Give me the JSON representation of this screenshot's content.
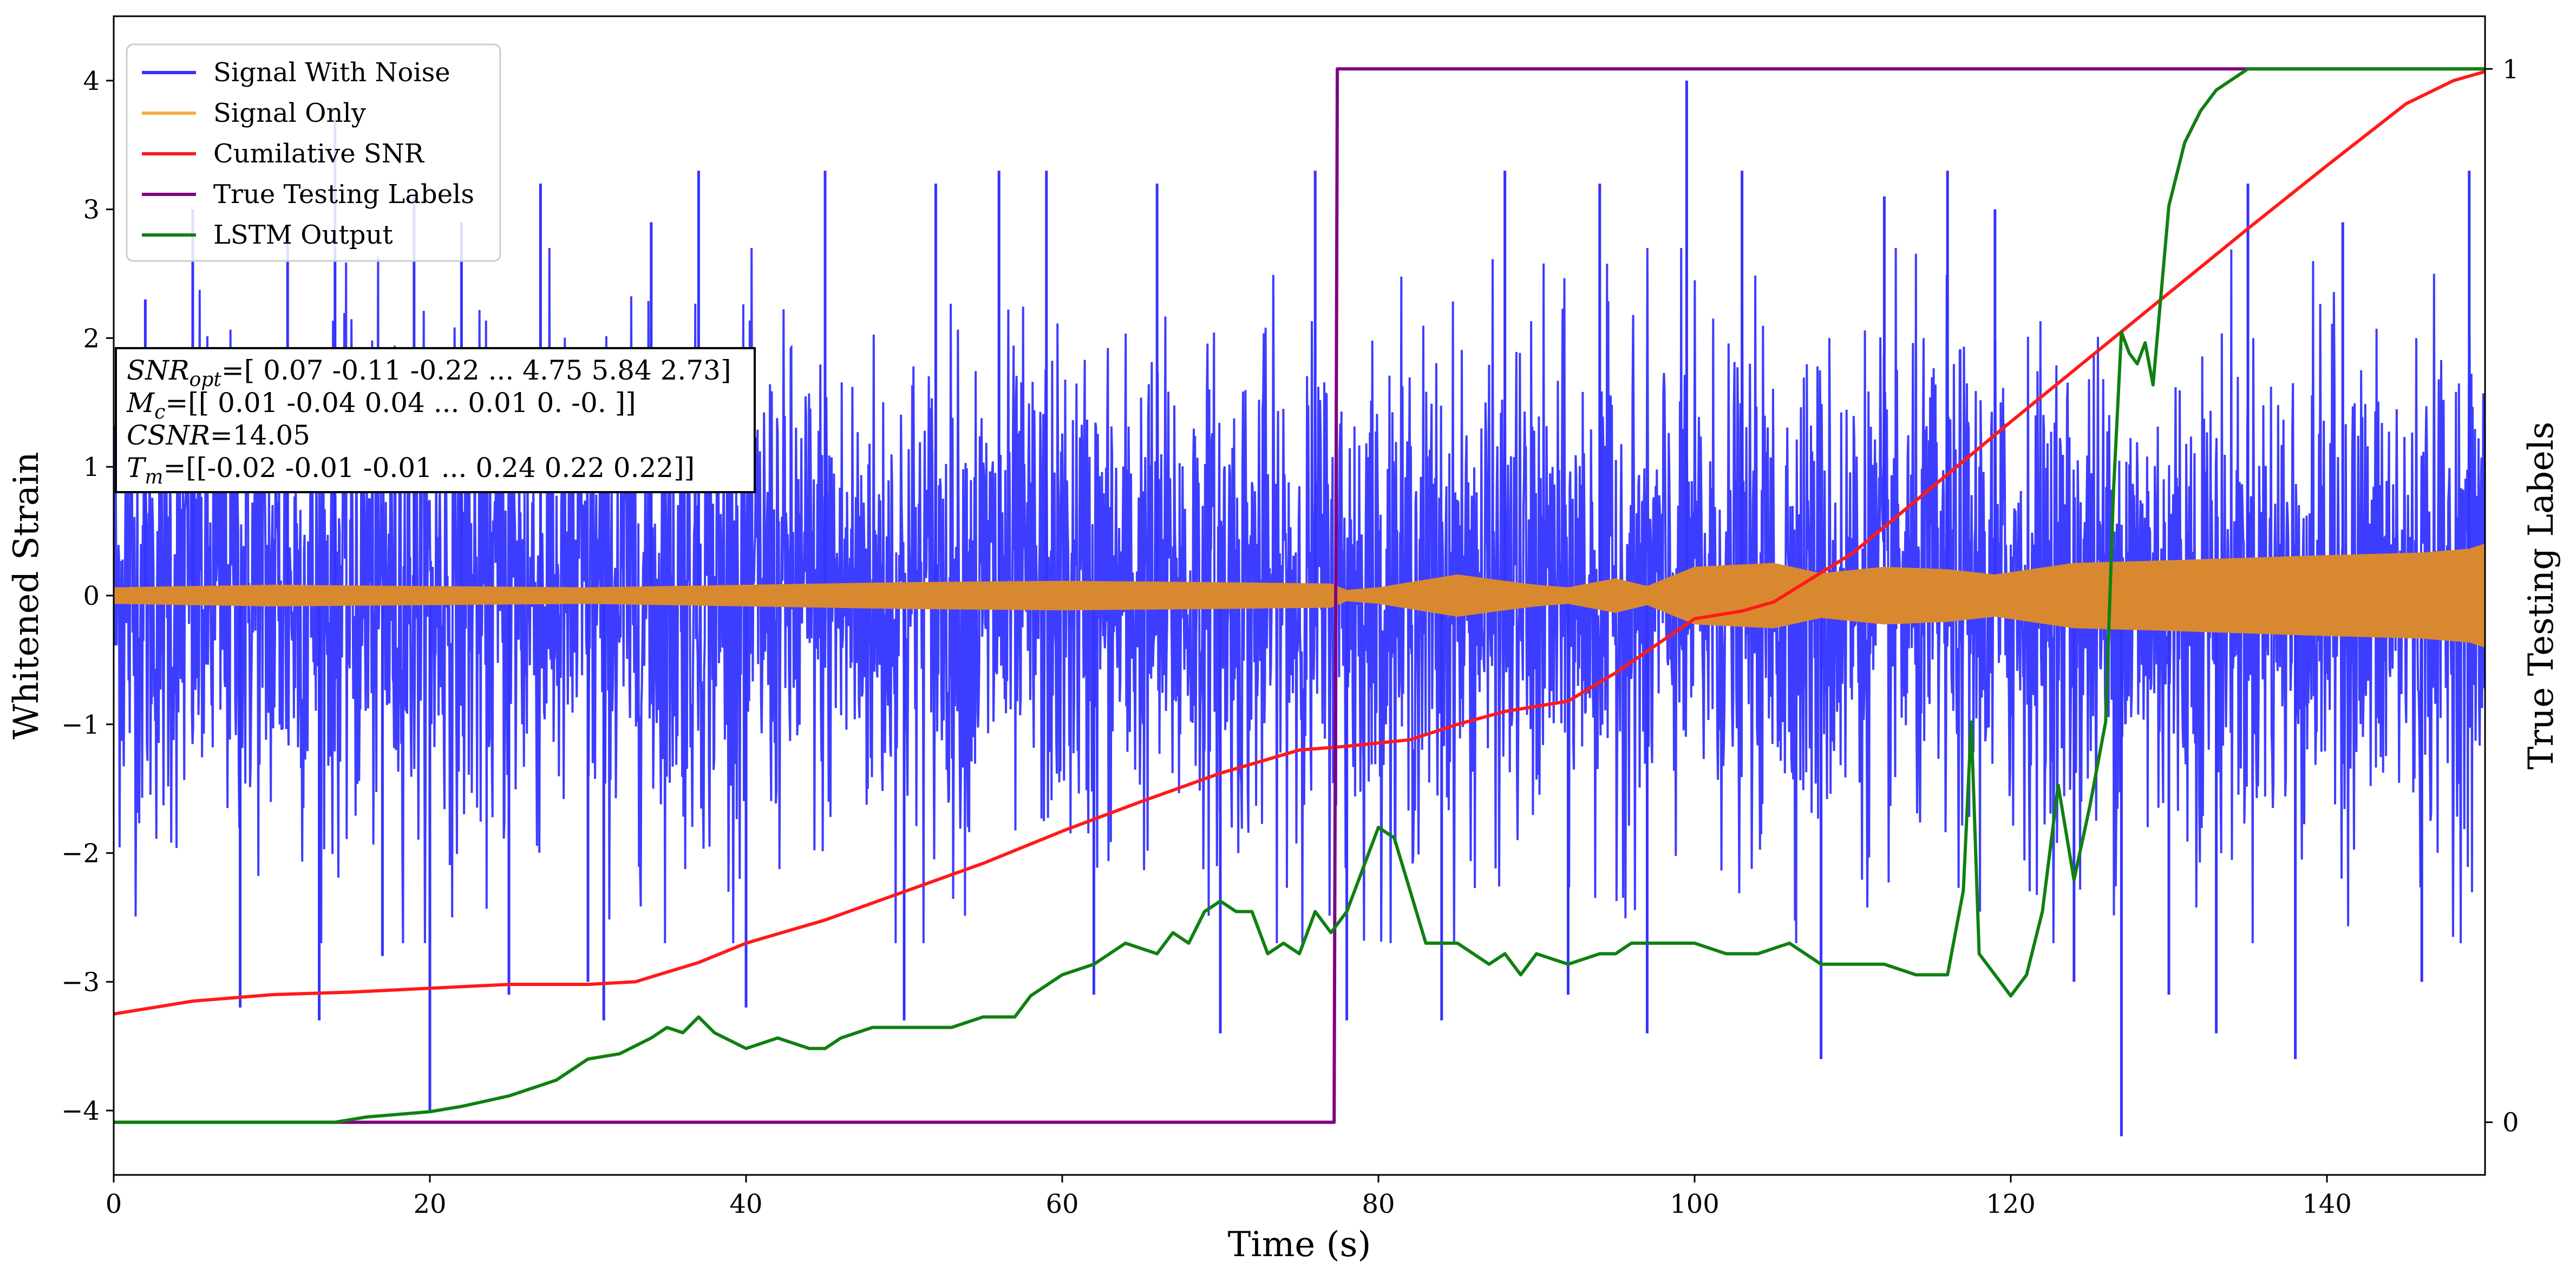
{
  "chart_data": {
    "type": "line",
    "title": "",
    "xlabel": "Time (s)",
    "ylabel": "Whitened Strain",
    "ylabel_right": "True Testing Labels",
    "xlim": [
      0,
      150
    ],
    "ylim": [
      -4.5,
      4.5
    ],
    "ylim_right": [
      -0.05,
      1.05
    ],
    "x_ticks": [
      0,
      20,
      40,
      60,
      80,
      100,
      120,
      140
    ],
    "y_ticks": [
      -4,
      -3,
      -2,
      -1,
      0,
      1,
      2,
      3,
      4
    ],
    "y_ticks_right": [
      0,
      1
    ],
    "legend": {
      "placement": "top-left",
      "entries": [
        {
          "label": "Signal With Noise",
          "color": "#3333ff"
        },
        {
          "label": "Signal Only",
          "color": "#f5b041"
        },
        {
          "label": "Cumilative SNR",
          "color": "#ff1a1a"
        },
        {
          "label": "True Testing Labels",
          "color": "#800080"
        },
        {
          "label": "LSTM Output",
          "color": "#108010"
        }
      ]
    },
    "annotation": {
      "lines": [
        {
          "name": "SNR",
          "sub": "opt",
          "value": "=[ 0.07 -0.11 -0.22 ...  4.75  5.84  2.73]"
        },
        {
          "name": "M",
          "sub": "c",
          "value": "=[[ 0.01 -0.04  0.04 ...  0.01  0.   -0.  ]]"
        },
        {
          "name": "CSNR",
          "sub": "",
          "value": "=14.05"
        },
        {
          "name": "T",
          "sub": "m",
          "value": "=[[-0.02 -0.01 -0.01 ...  0.24  0.22  0.22]]"
        }
      ]
    },
    "series": [
      {
        "name": "Signal With Noise",
        "axis": "left",
        "color": "#3333ff",
        "noise_band_sigma": 0.95,
        "typical_range": [
          -2.5,
          2.5
        ],
        "spikes": [
          [
            2,
            2.3
          ],
          [
            5,
            3.0
          ],
          [
            8,
            -3.2
          ],
          [
            11,
            2.8
          ],
          [
            13,
            -3.3
          ],
          [
            14,
            3.7
          ],
          [
            17,
            -2.8
          ],
          [
            19,
            3.1
          ],
          [
            20,
            -4.0
          ],
          [
            22,
            2.9
          ],
          [
            25,
            -3.1
          ],
          [
            27,
            3.2
          ],
          [
            30,
            -3.0
          ],
          [
            31,
            -3.3
          ],
          [
            34,
            2.9
          ],
          [
            37,
            3.3
          ],
          [
            40,
            -3.2
          ],
          [
            45,
            3.3
          ],
          [
            50,
            -3.3
          ],
          [
            52,
            3.2
          ],
          [
            56,
            3.3
          ],
          [
            59,
            3.3
          ],
          [
            62,
            -3.1
          ],
          [
            66,
            3.2
          ],
          [
            70,
            -3.4
          ],
          [
            76,
            3.3
          ],
          [
            78,
            -3.3
          ],
          [
            84,
            -3.3
          ],
          [
            88,
            3.3
          ],
          [
            92,
            -3.1
          ],
          [
            94,
            3.2
          ],
          [
            97,
            -3.4
          ],
          [
            99.5,
            4.0
          ],
          [
            103,
            3.3
          ],
          [
            108,
            -3.6
          ],
          [
            112,
            3.1
          ],
          [
            116,
            3.3
          ],
          [
            119,
            3.0
          ],
          [
            124,
            -3.0
          ],
          [
            127,
            -4.2
          ],
          [
            130,
            -3.1
          ],
          [
            133,
            -3.4
          ],
          [
            135,
            3.2
          ],
          [
            138,
            -3.6
          ],
          [
            141,
            2.9
          ],
          [
            146,
            -3.0
          ],
          [
            149,
            3.3
          ]
        ]
      },
      {
        "name": "Signal Only",
        "axis": "left",
        "color": "#f5b041",
        "fill_color": "#d8892f",
        "amplitude": [
          [
            0,
            0.06
          ],
          [
            10,
            0.08
          ],
          [
            20,
            0.07
          ],
          [
            30,
            0.06
          ],
          [
            40,
            0.08
          ],
          [
            50,
            0.1
          ],
          [
            60,
            0.11
          ],
          [
            70,
            0.1
          ],
          [
            77,
            0.09
          ],
          [
            78,
            0.04
          ],
          [
            80,
            0.06
          ],
          [
            85,
            0.16
          ],
          [
            88,
            0.11
          ],
          [
            90,
            0.08
          ],
          [
            92,
            0.06
          ],
          [
            95,
            0.13
          ],
          [
            97,
            0.07
          ],
          [
            100,
            0.22
          ],
          [
            105,
            0.25
          ],
          [
            108,
            0.17
          ],
          [
            112,
            0.22
          ],
          [
            116,
            0.2
          ],
          [
            119,
            0.16
          ],
          [
            124,
            0.25
          ],
          [
            130,
            0.27
          ],
          [
            140,
            0.31
          ],
          [
            146,
            0.33
          ],
          [
            149,
            0.36
          ],
          [
            150,
            0.4
          ]
        ]
      },
      {
        "name": "Cumilative SNR",
        "axis": "left",
        "color": "#ff1a1a",
        "x": [
          0,
          5,
          10,
          15,
          20,
          25,
          30,
          33,
          37,
          40,
          45,
          50,
          55,
          60,
          65,
          70,
          75,
          78,
          82,
          85,
          88,
          92,
          95,
          100,
          103,
          105,
          110,
          115,
          120,
          125,
          130,
          135,
          140,
          145,
          148,
          150
        ],
        "y": [
          -3.25,
          -3.15,
          -3.1,
          -3.08,
          -3.05,
          -3.02,
          -3.02,
          -3.0,
          -2.85,
          -2.7,
          -2.52,
          -2.3,
          -2.08,
          -1.83,
          -1.6,
          -1.38,
          -1.2,
          -1.17,
          -1.12,
          -1.0,
          -0.9,
          -0.82,
          -0.6,
          -0.18,
          -0.12,
          -0.05,
          0.33,
          0.84,
          1.35,
          1.85,
          2.35,
          2.85,
          3.34,
          3.82,
          4.0,
          4.07
        ]
      },
      {
        "name": "True Testing Labels",
        "axis": "right",
        "color": "#800080",
        "x": [
          0,
          77.2,
          77.4,
          150
        ],
        "y": [
          0,
          0,
          1,
          1
        ]
      },
      {
        "name": "LSTM Output",
        "axis": "right",
        "color": "#108010",
        "x": [
          0,
          5,
          10,
          14,
          16,
          20,
          22,
          25,
          28,
          30,
          32,
          34,
          35,
          36,
          37,
          38,
          40,
          42,
          44,
          45,
          46,
          48,
          50,
          51,
          53,
          55,
          57,
          58,
          60,
          62,
          64,
          66,
          67,
          68,
          69,
          70,
          71,
          72,
          73,
          74,
          75,
          76,
          77,
          78,
          79,
          80,
          81,
          82,
          83,
          85,
          87,
          88,
          89,
          90,
          92,
          94,
          95,
          96,
          98,
          100,
          102,
          104,
          106,
          108,
          110,
          112,
          114,
          116,
          117,
          117.5,
          118,
          119,
          120,
          121,
          122,
          123,
          124,
          125,
          126,
          126.5,
          127,
          127.5,
          128,
          128.5,
          129,
          130,
          131,
          132,
          133,
          134,
          135,
          140,
          145,
          150
        ],
        "y": [
          0,
          0,
          0,
          0,
          0.005,
          0.01,
          0.015,
          0.025,
          0.04,
          0.06,
          0.065,
          0.08,
          0.09,
          0.085,
          0.1,
          0.085,
          0.07,
          0.08,
          0.07,
          0.07,
          0.08,
          0.09,
          0.09,
          0.09,
          0.09,
          0.1,
          0.1,
          0.12,
          0.14,
          0.15,
          0.17,
          0.16,
          0.18,
          0.17,
          0.2,
          0.21,
          0.2,
          0.2,
          0.16,
          0.17,
          0.16,
          0.2,
          0.18,
          0.2,
          0.24,
          0.28,
          0.27,
          0.22,
          0.17,
          0.17,
          0.15,
          0.16,
          0.14,
          0.16,
          0.15,
          0.16,
          0.16,
          0.17,
          0.17,
          0.17,
          0.16,
          0.16,
          0.17,
          0.15,
          0.15,
          0.15,
          0.14,
          0.14,
          0.22,
          0.38,
          0.16,
          0.14,
          0.12,
          0.14,
          0.2,
          0.32,
          0.23,
          0.3,
          0.38,
          0.6,
          0.75,
          0.73,
          0.72,
          0.74,
          0.7,
          0.87,
          0.93,
          0.96,
          0.98,
          0.99,
          1.0,
          1.0,
          1.0,
          1.0
        ]
      }
    ]
  }
}
